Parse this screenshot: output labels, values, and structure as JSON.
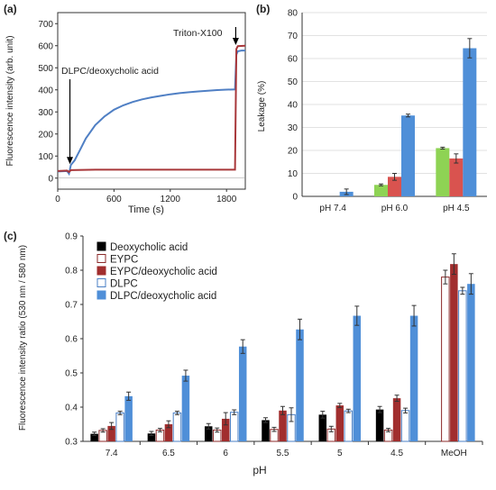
{
  "panel_labels": {
    "a": "(a)",
    "b": "(b)",
    "c": "(c)"
  },
  "chart_data": [
    {
      "type": "line",
      "panel": "(a)",
      "xlabel": "Time (s)",
      "ylabel": "Fluorescence intensity (arb. unit)",
      "xlim": [
        0,
        2000
      ],
      "ylim": [
        -50,
        750
      ],
      "x_ticks": [
        "0",
        "600",
        "1200",
        "1800"
      ],
      "y_ticks": [
        "0",
        "100",
        "200",
        "300",
        "400",
        "500",
        "600",
        "700"
      ],
      "annotations": [
        "DLPC/deoxycholic acid",
        "Triton-X100"
      ],
      "colors": {
        "blue": "#4f7fc4",
        "red": "#a8373a"
      },
      "series": [
        {
          "points": [
            [
              0,
              30
            ],
            [
              100,
              32
            ],
            [
              120,
              20
            ],
            [
              140,
              60
            ],
            [
              180,
              80
            ],
            [
              240,
              130
            ],
            [
              300,
              180
            ],
            [
              400,
              240
            ],
            [
              500,
              280
            ],
            [
              600,
              310
            ],
            [
              700,
              330
            ],
            [
              800,
              345
            ],
            [
              900,
              357
            ],
            [
              1000,
              366
            ],
            [
              1100,
              373
            ],
            [
              1200,
              380
            ],
            [
              1300,
              385
            ],
            [
              1400,
              389
            ],
            [
              1500,
              393
            ],
            [
              1600,
              396
            ],
            [
              1700,
              399
            ],
            [
              1800,
              401
            ],
            [
              1890,
              402
            ],
            [
              1905,
              560
            ],
            [
              1920,
              575
            ],
            [
              1960,
              578
            ],
            [
              2000,
              578
            ]
          ]
        },
        {
          "points": [
            [
              0,
              32
            ],
            [
              100,
              34
            ],
            [
              120,
              28
            ],
            [
              140,
              36
            ],
            [
              400,
              38
            ],
            [
              800,
              38
            ],
            [
              1200,
              38
            ],
            [
              1600,
              38
            ],
            [
              1890,
              38
            ],
            [
              1905,
              585
            ],
            [
              1920,
              598
            ],
            [
              2000,
              600
            ]
          ]
        }
      ]
    },
    {
      "type": "bar",
      "panel": "(b)",
      "ylabel": "Leakage (%)",
      "categories": [
        "pH 7.4",
        "pH 6.0",
        "pH 4.5"
      ],
      "ylim": [
        0,
        80
      ],
      "y_ticks": [
        "0",
        "10",
        "20",
        "30",
        "40",
        "50",
        "60",
        "70",
        "80"
      ],
      "colors": [
        "#8ed354",
        "#d9534f",
        "#4f8fd8"
      ],
      "series": [
        {
          "values": [
            0,
            5,
            21
          ],
          "errors": [
            0,
            0.4,
            0.4
          ]
        },
        {
          "values": [
            0,
            8.5,
            16.5
          ],
          "errors": [
            0,
            1.5,
            2
          ]
        },
        {
          "values": [
            2,
            35.2,
            64.5
          ],
          "errors": [
            1.2,
            0.6,
            4.2
          ]
        }
      ]
    },
    {
      "type": "bar",
      "panel": "(c)",
      "xlabel": "pH",
      "ylabel": "Fluorescence intensity ratio (530 nm / 580 nm)",
      "categories": [
        "7.4",
        "6.5",
        "6",
        "5.5",
        "5",
        "4.5",
        "MeOH"
      ],
      "ylim": [
        0.3,
        0.9
      ],
      "y_ticks": [
        "0.3",
        "0.4",
        "0.5",
        "0.6",
        "0.7",
        "0.8",
        "0.9"
      ],
      "series": [
        {
          "name": "Deoxycholic acid",
          "style": "filled",
          "color": "#000000",
          "values": [
            0.322,
            0.323,
            0.344,
            0.362,
            0.378,
            0.393,
            null
          ],
          "errors": [
            0.005,
            0.006,
            0.008,
            0.007,
            0.01,
            0.009,
            0
          ]
        },
        {
          "name": "EYPC",
          "style": "hollow",
          "color": "#8b2a2a",
          "values": [
            0.332,
            0.333,
            0.333,
            0.335,
            0.336,
            0.333,
            0.78
          ],
          "errors": [
            0.005,
            0.005,
            0.006,
            0.006,
            0.008,
            0.005,
            0.02
          ]
        },
        {
          "name": "EYPC/deoxycholic acid",
          "style": "filled",
          "color": "#a12e2e",
          "values": [
            0.345,
            0.35,
            0.366,
            0.39,
            0.405,
            0.426,
            0.818
          ],
          "errors": [
            0.01,
            0.01,
            0.018,
            0.012,
            0.006,
            0.009,
            0.03
          ]
        },
        {
          "name": "DLPC",
          "style": "hollow",
          "color": "#4a7fc4",
          "values": [
            0.383,
            0.383,
            0.385,
            0.378,
            0.389,
            0.39,
            0.74
          ],
          "errors": [
            0.005,
            0.005,
            0.007,
            0.02,
            0.005,
            0.007,
            0.01
          ]
        },
        {
          "name": "DLPC/deoxycholic acid",
          "style": "filled",
          "color": "#4f8fd8",
          "values": [
            0.432,
            0.492,
            0.577,
            0.627,
            0.667,
            0.667,
            0.76
          ],
          "errors": [
            0.012,
            0.016,
            0.02,
            0.03,
            0.028,
            0.03,
            0.03
          ]
        }
      ]
    }
  ]
}
